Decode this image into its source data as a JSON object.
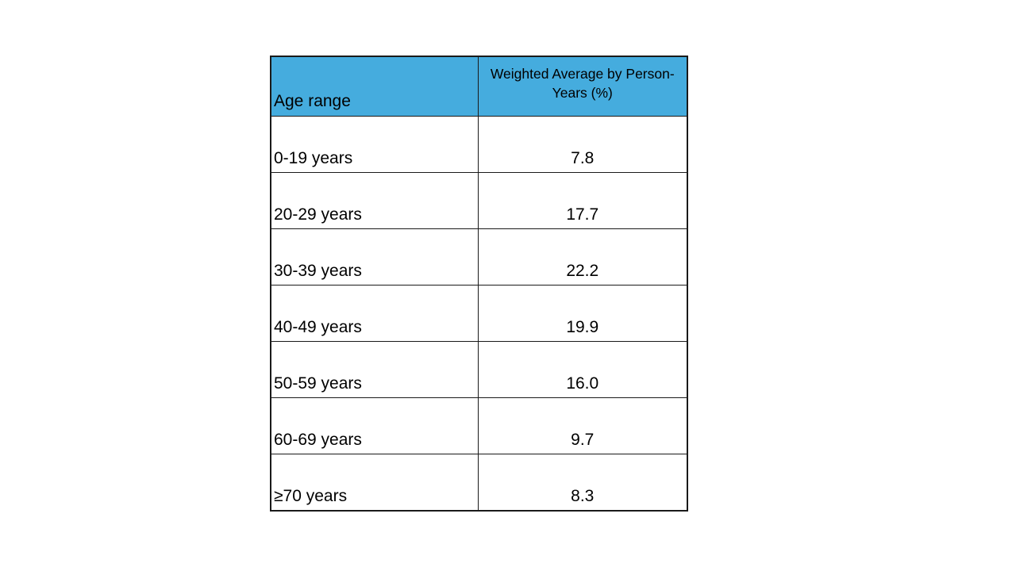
{
  "table": {
    "header_bg": "#45acde",
    "columns": {
      "age_label": "Age range",
      "value_label": "Weighted Average by Person-Years (%)"
    },
    "rows": [
      {
        "age": "0-19 years",
        "value": "7.8"
      },
      {
        "age": "20-29 years",
        "value": "17.7"
      },
      {
        "age": "30-39 years",
        "value": "22.2"
      },
      {
        "age": "40-49 years",
        "value": "19.9"
      },
      {
        "age": "50-59 years",
        "value": "16.0"
      },
      {
        "age": "60-69 years",
        "value": "9.7"
      },
      {
        "age": "≥70 years",
        "value": "8.3"
      }
    ]
  },
  "chart_data": {
    "type": "table",
    "title": "",
    "columns": [
      "Age range",
      "Weighted Average by Person-Years (%)"
    ],
    "rows": [
      [
        "0-19 years",
        7.8
      ],
      [
        "20-29 years",
        17.7
      ],
      [
        "30-39 years",
        22.2
      ],
      [
        "40-49 years",
        19.9
      ],
      [
        "50-59 years",
        16.0
      ],
      [
        "60-69 years",
        9.7
      ],
      [
        "≥70 years",
        8.3
      ]
    ],
    "layout_hints": {
      "header_background": "#45acde",
      "grid": "on",
      "age_column_align": "left-bottom",
      "value_column_align": "center-bottom"
    }
  }
}
